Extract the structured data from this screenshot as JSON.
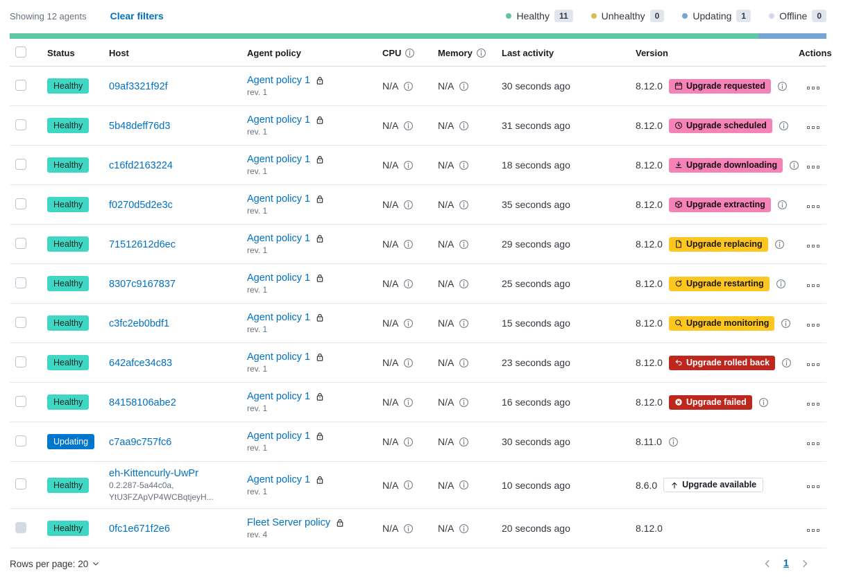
{
  "toolbar": {
    "showing": "Showing 12 agents",
    "clear_filters": "Clear filters"
  },
  "legend": [
    {
      "label": "Healthy",
      "count": "11",
      "color": "#5DC6A3"
    },
    {
      "label": "Unhealthy",
      "count": "0",
      "color": "#D6BF57"
    },
    {
      "label": "Updating",
      "count": "1",
      "color": "#74A5D5"
    },
    {
      "label": "Offline",
      "count": "0",
      "color": "#D3DAE6"
    }
  ],
  "health_bar": {
    "segments": [
      {
        "color": "#5DC6A3",
        "fraction": 11
      },
      {
        "color": "#74A5D5",
        "fraction": 1
      }
    ]
  },
  "colors": {
    "healthy": "#40D6C4",
    "primary": "#0077CC",
    "accent": "#F583B7",
    "warning": "#FDC620",
    "danger": "#BD271E",
    "link": "#0071C2"
  },
  "table": {
    "headers": {
      "status": "Status",
      "host": "Host",
      "policy": "Agent policy",
      "cpu": "CPU",
      "memory": "Memory",
      "last_activity": "Last activity",
      "version": "Version",
      "actions": "Actions"
    },
    "rows": [
      {
        "status": {
          "label": "Healthy",
          "variant": "healthy"
        },
        "host": {
          "name": "09af3321f92f",
          "sub": []
        },
        "policy": {
          "name": "Agent policy 1",
          "rev": "rev. 1",
          "locked": false
        },
        "cpu": "N/A",
        "memory": "N/A",
        "last_activity": "30 seconds ago",
        "version": "8.12.0",
        "upgrade": {
          "label": "Upgrade requested",
          "variant": "accent",
          "icon": "calendar-icon"
        },
        "version_info": true,
        "checkbox_disabled": false
      },
      {
        "status": {
          "label": "Healthy",
          "variant": "healthy"
        },
        "host": {
          "name": "5b48deff76d3",
          "sub": []
        },
        "policy": {
          "name": "Agent policy 1",
          "rev": "rev. 1",
          "locked": false
        },
        "cpu": "N/A",
        "memory": "N/A",
        "last_activity": "31 seconds ago",
        "version": "8.12.0",
        "upgrade": {
          "label": "Upgrade scheduled",
          "variant": "accent",
          "icon": "clock-icon"
        },
        "version_info": true,
        "checkbox_disabled": false
      },
      {
        "status": {
          "label": "Healthy",
          "variant": "healthy"
        },
        "host": {
          "name": "c16fd2163224",
          "sub": []
        },
        "policy": {
          "name": "Agent policy 1",
          "rev": "rev. 1",
          "locked": false
        },
        "cpu": "N/A",
        "memory": "N/A",
        "last_activity": "18 seconds ago",
        "version": "8.12.0",
        "upgrade": {
          "label": "Upgrade downloading",
          "variant": "accent",
          "icon": "download-icon"
        },
        "version_info": true,
        "checkbox_disabled": false
      },
      {
        "status": {
          "label": "Healthy",
          "variant": "healthy"
        },
        "host": {
          "name": "f0270d5d2e3c",
          "sub": []
        },
        "policy": {
          "name": "Agent policy 1",
          "rev": "rev. 1",
          "locked": false
        },
        "cpu": "N/A",
        "memory": "N/A",
        "last_activity": "35 seconds ago",
        "version": "8.12.0",
        "upgrade": {
          "label": "Upgrade extracting",
          "variant": "accent",
          "icon": "package-icon"
        },
        "version_info": true,
        "checkbox_disabled": false
      },
      {
        "status": {
          "label": "Healthy",
          "variant": "healthy"
        },
        "host": {
          "name": "71512612d6ec",
          "sub": []
        },
        "policy": {
          "name": "Agent policy 1",
          "rev": "rev. 1",
          "locked": false
        },
        "cpu": "N/A",
        "memory": "N/A",
        "last_activity": "29 seconds ago",
        "version": "8.12.0",
        "upgrade": {
          "label": "Upgrade replacing",
          "variant": "warning",
          "icon": "document-icon"
        },
        "version_info": true,
        "checkbox_disabled": false
      },
      {
        "status": {
          "label": "Healthy",
          "variant": "healthy"
        },
        "host": {
          "name": "8307c9167837",
          "sub": []
        },
        "policy": {
          "name": "Agent policy 1",
          "rev": "rev. 1",
          "locked": false
        },
        "cpu": "N/A",
        "memory": "N/A",
        "last_activity": "25 seconds ago",
        "version": "8.12.0",
        "upgrade": {
          "label": "Upgrade restarting",
          "variant": "warning",
          "icon": "refresh-icon"
        },
        "version_info": true,
        "checkbox_disabled": false
      },
      {
        "status": {
          "label": "Healthy",
          "variant": "healthy"
        },
        "host": {
          "name": "c3fc2eb0bdf1",
          "sub": []
        },
        "policy": {
          "name": "Agent policy 1",
          "rev": "rev. 1",
          "locked": false
        },
        "cpu": "N/A",
        "memory": "N/A",
        "last_activity": "15 seconds ago",
        "version": "8.12.0",
        "upgrade": {
          "label": "Upgrade monitoring",
          "variant": "warning",
          "icon": "inspect-icon"
        },
        "version_info": true,
        "checkbox_disabled": false
      },
      {
        "status": {
          "label": "Healthy",
          "variant": "healthy"
        },
        "host": {
          "name": "642afce34c83",
          "sub": []
        },
        "policy": {
          "name": "Agent policy 1",
          "rev": "rev. 1",
          "locked": false
        },
        "cpu": "N/A",
        "memory": "N/A",
        "last_activity": "23 seconds ago",
        "version": "8.12.0",
        "upgrade": {
          "label": "Upgrade rolled back",
          "variant": "danger",
          "icon": "return-icon"
        },
        "version_info": true,
        "checkbox_disabled": false
      },
      {
        "status": {
          "label": "Healthy",
          "variant": "healthy"
        },
        "host": {
          "name": "84158106abe2",
          "sub": []
        },
        "policy": {
          "name": "Agent policy 1",
          "rev": "rev. 1",
          "locked": false
        },
        "cpu": "N/A",
        "memory": "N/A",
        "last_activity": "16 seconds ago",
        "version": "8.12.0",
        "upgrade": {
          "label": "Upgrade failed",
          "variant": "danger",
          "icon": "cross-in-circle-icon"
        },
        "version_info": true,
        "checkbox_disabled": false
      },
      {
        "status": {
          "label": "Updating",
          "variant": "updating"
        },
        "host": {
          "name": "c7aa9c757fc6",
          "sub": []
        },
        "policy": {
          "name": "Agent policy 1",
          "rev": "rev. 1",
          "locked": false
        },
        "cpu": "N/A",
        "memory": "N/A",
        "last_activity": "30 seconds ago",
        "version": "8.11.0",
        "upgrade": null,
        "version_info": true,
        "checkbox_disabled": false
      },
      {
        "status": {
          "label": "Healthy",
          "variant": "healthy"
        },
        "host": {
          "name": "eh-Kittencurly-UwPr",
          "sub": [
            "0.2.287-5a44c0a,",
            "YtU3FZApVP4WCBqtjeyH..."
          ]
        },
        "policy": {
          "name": "Agent policy 1",
          "rev": "rev. 1",
          "locked": false
        },
        "cpu": "N/A",
        "memory": "N/A",
        "last_activity": "10 seconds ago",
        "version": "8.6.0",
        "upgrade": {
          "label": "Upgrade available",
          "variant": "hollow",
          "icon": "arrow-up-icon"
        },
        "version_info": false,
        "checkbox_disabled": false
      },
      {
        "status": {
          "label": "Healthy",
          "variant": "healthy"
        },
        "host": {
          "name": "0fc1e671f2e6",
          "sub": []
        },
        "policy": {
          "name": "Fleet Server policy",
          "rev": "rev. 4",
          "locked": true
        },
        "cpu": "N/A",
        "memory": "N/A",
        "last_activity": "20 seconds ago",
        "version": "8.12.0",
        "upgrade": null,
        "version_info": false,
        "checkbox_disabled": true
      }
    ]
  },
  "footer": {
    "rows_per_page": "Rows per page: 20",
    "page": "1"
  }
}
